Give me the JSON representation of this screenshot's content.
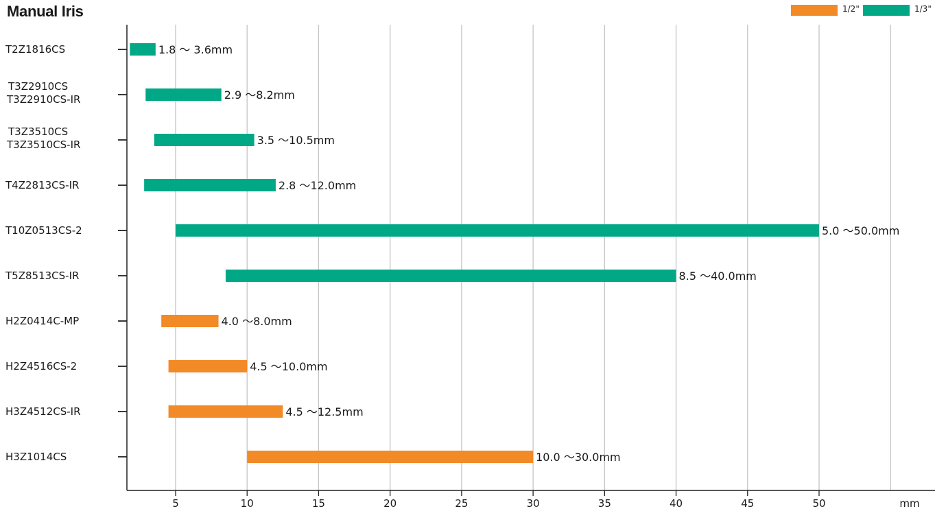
{
  "title": "Manual Iris",
  "legend": [
    {
      "label": "1/2\"",
      "color": "#f28a27"
    },
    {
      "label": "1/3\"",
      "color": "#00a886"
    }
  ],
  "chart_data": {
    "type": "bar",
    "orientation": "horizontal-range",
    "title": "Manual Iris",
    "xlabel": "",
    "x_unit_label": "mm",
    "ylabel": "",
    "x_ticks": [
      5,
      10,
      15,
      20,
      25,
      30,
      35,
      40,
      45,
      50
    ],
    "grid": "vertical",
    "legend_position": "top-right",
    "categories": [
      {
        "lines": [
          "T2Z1816CS"
        ],
        "format": "1/3\"",
        "min": 1.8,
        "max": 3.6,
        "range_label": "1.8 ～ 3.6mm"
      },
      {
        "lines": [
          "T3Z2910CS",
          "T3Z2910CS-IR"
        ],
        "format": "1/3\"",
        "min": 2.9,
        "max": 8.2,
        "range_label": "2.9 ～8.2mm"
      },
      {
        "lines": [
          "T3Z3510CS",
          "T3Z3510CS-IR"
        ],
        "format": "1/3\"",
        "min": 3.5,
        "max": 10.5,
        "range_label": "3.5 ～10.5mm"
      },
      {
        "lines": [
          "T4Z2813CS-IR"
        ],
        "format": "1/3\"",
        "min": 2.8,
        "max": 12.0,
        "range_label": "2.8 ～12.0mm"
      },
      {
        "lines": [
          "T10Z0513CS-2"
        ],
        "format": "1/3\"",
        "min": 5.0,
        "max": 50.0,
        "range_label": "5.0 ～50.0mm"
      },
      {
        "lines": [
          "T5Z8513CS-IR"
        ],
        "format": "1/3\"",
        "min": 8.5,
        "max": 40.0,
        "range_label": "8.5 ～40.0mm"
      },
      {
        "lines": [
          "H2Z0414C-MP"
        ],
        "format": "1/2\"",
        "min": 4.0,
        "max": 8.0,
        "range_label": "4.0 ～8.0mm"
      },
      {
        "lines": [
          "H2Z4516CS-2"
        ],
        "format": "1/2\"",
        "min": 4.5,
        "max": 10.0,
        "range_label": "4.5 ～10.0mm"
      },
      {
        "lines": [
          "H3Z4512CS-IR"
        ],
        "format": "1/2\"",
        "min": 4.5,
        "max": 12.5,
        "range_label": "4.5 ～12.5mm"
      },
      {
        "lines": [
          "H3Z1014CS"
        ],
        "format": "1/2\"",
        "min": 10.0,
        "max": 30.0,
        "range_label": "10.0 ～30.0mm"
      }
    ]
  }
}
